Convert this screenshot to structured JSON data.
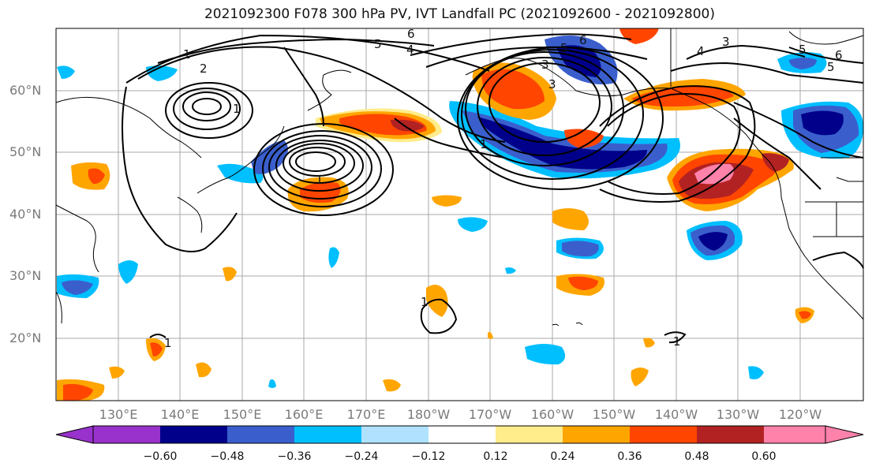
{
  "title": "2021092300 F078 300 hPa PV, IVT Landfall PC (2021092600 - 2021092800)",
  "lat_labels": [
    "60°N",
    "50°N",
    "40°N",
    "30°N",
    "20°N"
  ],
  "lon_labels": [
    "130°E",
    "140°E",
    "150°E",
    "160°E",
    "170°E",
    "180°W",
    "170°W",
    "160°W",
    "150°W",
    "140°W",
    "130°W",
    "120°W"
  ],
  "colorbar": {
    "ticks": [
      "−0.60",
      "−0.48",
      "−0.36",
      "−0.24",
      "−0.12",
      "0.12",
      "0.24",
      "0.36",
      "0.48",
      "0.60"
    ],
    "colors": [
      "#9932cc",
      "#00008b",
      "#3a5fcd",
      "#00bfff",
      "#b0e2ff",
      "#ffffff",
      "#ffec8b",
      "#ffa500",
      "#ff4500",
      "#b22222",
      "#ff82ab"
    ]
  },
  "contour_labels": [
    "1",
    "2",
    "1",
    "6",
    "5",
    "4",
    "5",
    "6",
    "3",
    "4",
    "5",
    "3",
    "3",
    "1",
    "6",
    "5",
    "1",
    "1",
    "1",
    "1"
  ]
}
